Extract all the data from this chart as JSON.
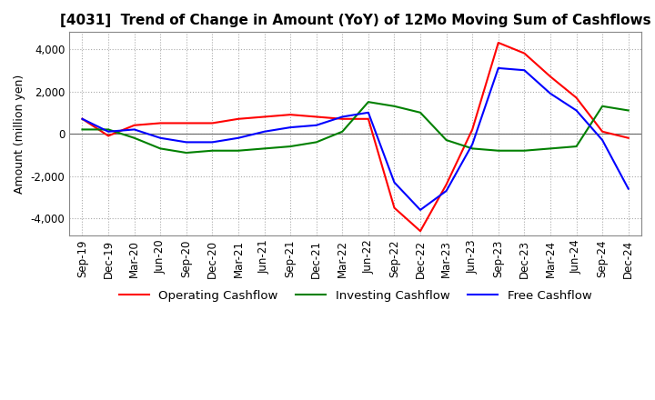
{
  "title": "[4031]  Trend of Change in Amount (YoY) of 12Mo Moving Sum of Cashflows",
  "ylabel": "Amount (million yen)",
  "ylim": [
    -4800,
    4800
  ],
  "yticks": [
    -4000,
    -2000,
    0,
    2000,
    4000
  ],
  "x_labels": [
    "Sep-19",
    "Dec-19",
    "Mar-20",
    "Jun-20",
    "Sep-20",
    "Dec-20",
    "Mar-21",
    "Jun-21",
    "Sep-21",
    "Dec-21",
    "Mar-22",
    "Jun-22",
    "Sep-22",
    "Dec-22",
    "Mar-23",
    "Jun-23",
    "Sep-23",
    "Dec-23",
    "Mar-24",
    "Jun-24",
    "Sep-24",
    "Dec-24"
  ],
  "operating": [
    700,
    -100,
    400,
    500,
    500,
    500,
    700,
    800,
    900,
    800,
    700,
    700,
    -3500,
    -4600,
    -2400,
    200,
    4300,
    3800,
    2700,
    1700,
    100,
    -200
  ],
  "investing": [
    200,
    200,
    -200,
    -700,
    -900,
    -800,
    -800,
    -700,
    -600,
    -400,
    100,
    1500,
    1300,
    1000,
    -300,
    -700,
    -800,
    -800,
    -700,
    -600,
    1300,
    1100
  ],
  "free": [
    700,
    100,
    200,
    -200,
    -400,
    -400,
    -200,
    100,
    300,
    400,
    800,
    1000,
    -2300,
    -3600,
    -2700,
    -500,
    3100,
    3000,
    1900,
    1100,
    -300,
    -2600
  ],
  "operating_color": "#ff0000",
  "investing_color": "#008000",
  "free_color": "#0000ff",
  "grid_color": "#aaaaaa",
  "background_color": "#ffffff",
  "title_fontsize": 11,
  "axis_fontsize": 9,
  "tick_fontsize": 8.5,
  "legend_fontsize": 9.5
}
